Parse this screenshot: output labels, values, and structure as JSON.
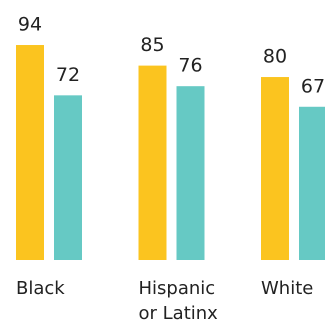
{
  "chart_data": {
    "type": "bar",
    "categories": [
      "Black",
      "Hispanic or Latinx",
      "White"
    ],
    "series": [
      {
        "color": "#fbc41f",
        "values": [
          94,
          85,
          80
        ]
      },
      {
        "color": "#66c9c4",
        "values": [
          72,
          76,
          67
        ]
      }
    ]
  }
}
